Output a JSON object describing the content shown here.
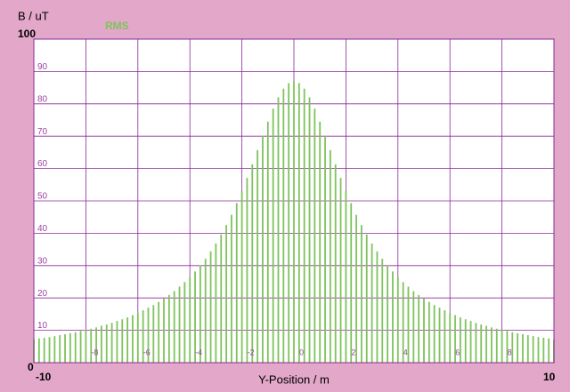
{
  "chart_data": {
    "type": "bar",
    "y_label": "B / uT",
    "x_label": "Y-Position / m",
    "xlim": [
      -10,
      10
    ],
    "ylim": [
      0,
      100
    ],
    "xticks": [
      -10,
      -8,
      -6,
      -4,
      -2,
      0,
      2,
      4,
      6,
      8,
      10
    ],
    "yticks": [
      0,
      10,
      20,
      30,
      40,
      50,
      60,
      70,
      80,
      90,
      100
    ],
    "grid": true,
    "x": [
      -10,
      -9.8,
      -9.6,
      -9.4,
      -9.2,
      -9,
      -8.8,
      -8.6,
      -8.4,
      -8.2,
      -8,
      -7.8,
      -7.6,
      -7.4,
      -7.2,
      -7,
      -6.8,
      -6.6,
      -6.4,
      -6.2,
      -6,
      -5.8,
      -5.6,
      -5.4,
      -5.2,
      -5,
      -4.8,
      -4.6,
      -4.4,
      -4.2,
      -4,
      -3.8,
      -3.6,
      -3.4,
      -3.2,
      -3,
      -2.8,
      -2.6,
      -2.4,
      -2.2,
      -2,
      -1.8,
      -1.6,
      -1.4,
      -1.2,
      -1,
      -0.8,
      -0.6,
      -0.4,
      -0.2,
      0,
      0.2,
      0.4,
      0.6,
      0.8,
      1,
      1.2,
      1.4,
      1.6,
      1.8,
      2,
      2.2,
      2.4,
      2.6,
      2.8,
      3,
      3.2,
      3.4,
      3.6,
      3.8,
      4,
      4.2,
      4.4,
      4.6,
      4.8,
      5,
      5.2,
      5.4,
      5.6,
      5.8,
      6,
      6.2,
      6.4,
      6.6,
      6.8,
      7,
      7.2,
      7.4,
      7.6,
      7.8,
      8,
      8.2,
      8.4,
      8.6,
      8.8,
      9,
      9.2,
      9.4,
      9.6,
      9.8,
      10
    ],
    "series": [
      {
        "name": "RMS",
        "color": "#7ec35c",
        "values": [
          7.2,
          7.5,
          7.7,
          7.9,
          8.2,
          8.5,
          8.8,
          9.1,
          9.4,
          9.8,
          10.1,
          10.5,
          10.9,
          11.4,
          11.8,
          12.3,
          12.9,
          13.4,
          14.0,
          14.7,
          15.4,
          16.2,
          17.0,
          17.8,
          18.8,
          19.8,
          20.9,
          22.1,
          23.5,
          24.9,
          26.5,
          28.2,
          30.1,
          32.1,
          34.4,
          36.8,
          39.6,
          42.5,
          45.7,
          49.3,
          53.0,
          57.1,
          61.3,
          65.7,
          70.2,
          74.5,
          78.5,
          82.0,
          84.7,
          86.4,
          87.0,
          86.4,
          84.7,
          82.0,
          78.5,
          74.5,
          70.2,
          65.7,
          61.3,
          57.1,
          53.0,
          49.3,
          45.7,
          42.5,
          39.6,
          36.8,
          34.4,
          32.1,
          30.1,
          28.2,
          26.5,
          24.9,
          23.5,
          22.1,
          20.9,
          19.8,
          18.8,
          17.8,
          17.0,
          16.2,
          15.4,
          14.7,
          14.0,
          13.4,
          12.9,
          12.3,
          11.8,
          11.4,
          10.9,
          10.5,
          10.1,
          9.8,
          9.4,
          9.1,
          8.8,
          8.5,
          8.2,
          7.9,
          7.7,
          7.5,
          7.2
        ]
      }
    ]
  }
}
